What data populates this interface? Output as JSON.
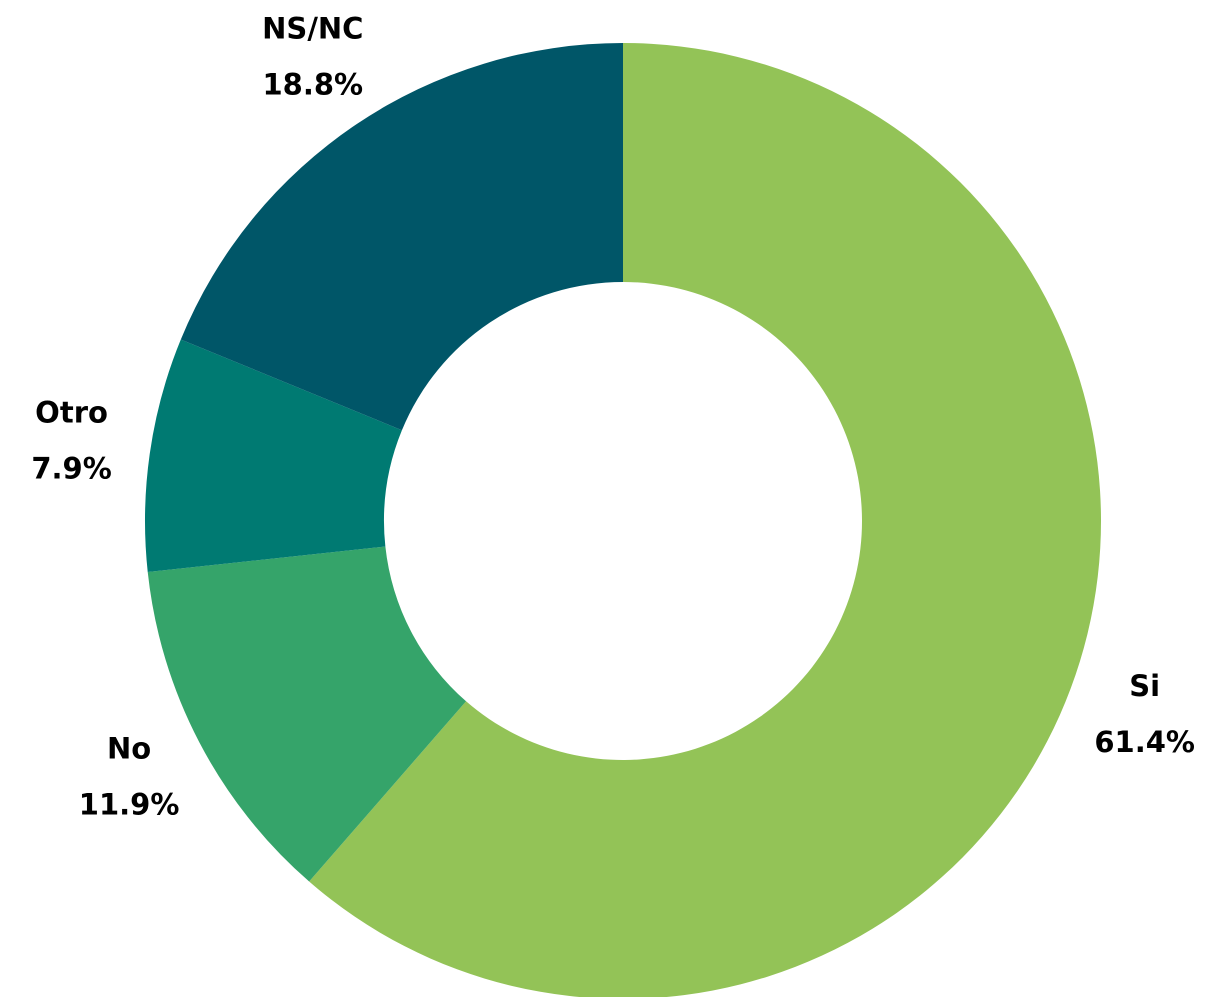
{
  "chart_data": {
    "type": "donut",
    "categories": [
      "Si",
      "No",
      "Otro",
      "NS/NC"
    ],
    "values": [
      61.4,
      11.9,
      7.9,
      18.8
    ],
    "value_labels": [
      "61.4%",
      "11.9%",
      "7.9%",
      "18.8%"
    ],
    "colors": [
      "#93c357",
      "#35a46a",
      "#007a72",
      "#005668"
    ]
  }
}
